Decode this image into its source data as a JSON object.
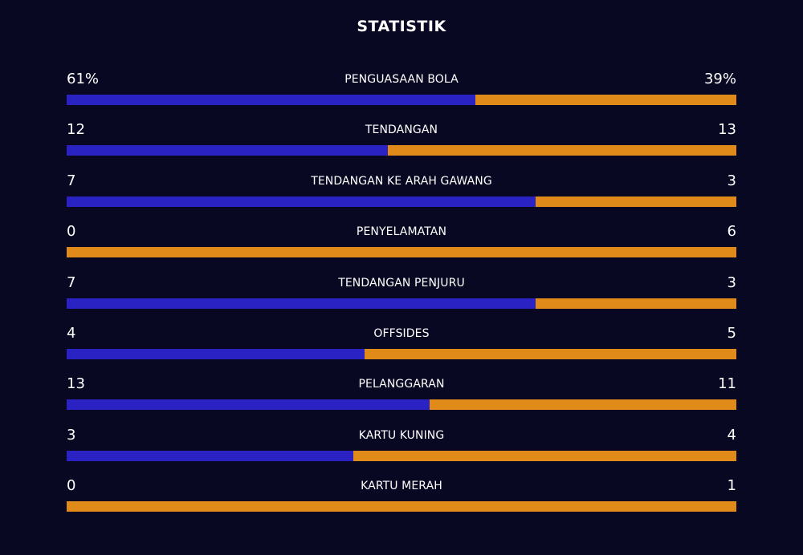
{
  "title": "STATISTIK",
  "colors": {
    "background": "#080823",
    "home": "#2a22c2",
    "away": "#e08a19"
  },
  "stats": [
    {
      "label": "PENGUASAAN BOLA",
      "home": "61%",
      "away": "39%",
      "home_value": 61,
      "away_value": 39
    },
    {
      "label": "TENDANGAN",
      "home": "12",
      "away": "13",
      "home_value": 12,
      "away_value": 13
    },
    {
      "label": "TENDANGAN KE ARAH GAWANG",
      "home": "7",
      "away": "3",
      "home_value": 7,
      "away_value": 3
    },
    {
      "label": "PENYELAMATAN",
      "home": "0",
      "away": "6",
      "home_value": 0,
      "away_value": 6
    },
    {
      "label": "TENDANGAN PENJURU",
      "home": "7",
      "away": "3",
      "home_value": 7,
      "away_value": 3
    },
    {
      "label": "OFFSIDES",
      "home": "4",
      "away": "5",
      "home_value": 4,
      "away_value": 5
    },
    {
      "label": "PELANGGARAN",
      "home": "13",
      "away": "11",
      "home_value": 13,
      "away_value": 11
    },
    {
      "label": "KARTU KUNING",
      "home": "3",
      "away": "4",
      "home_value": 3,
      "away_value": 4
    },
    {
      "label": "KARTU MERAH",
      "home": "0",
      "away": "1",
      "home_value": 0,
      "away_value": 1
    }
  ]
}
